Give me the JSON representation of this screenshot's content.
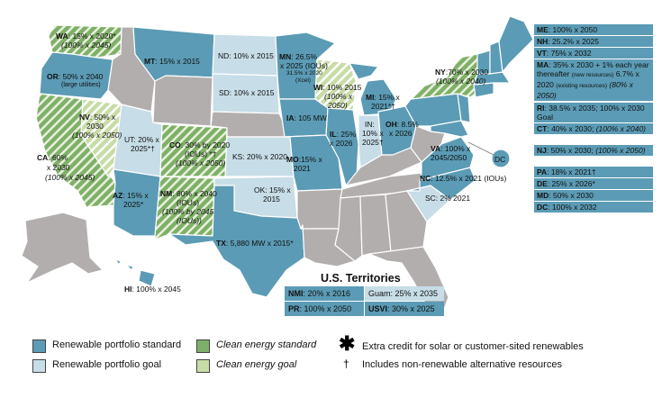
{
  "colors": {
    "rps": "#5b9bb5",
    "goal": "#c7dde7",
    "ces": "#7fb069",
    "ces_goal": "#c8dca6",
    "none": "#b3aeae",
    "border": "#ffffff"
  },
  "states": {
    "WA": "15% x 2020*",
    "WA_b": "(100% x 2045)",
    "OR": "50% x 2040",
    "OR_b": "(large utilities)",
    "CA": "60%",
    "CA_b": "x 2030",
    "CA_c": "(100% x 2045)",
    "NV": "50% x",
    "NV_b": "2030",
    "NV_c": "(100% x 2050)",
    "UT": "UT: 20% x",
    "UT_b": "2025*†",
    "AZ": "15% x",
    "AZ_b": "2025*",
    "MT": "15% x 2015",
    "CO": "30% by 2020",
    "CO_b": "(IOUs) *†",
    "CO_c": "(100% x 2050)",
    "NM": "80% x 2040",
    "NM_b": "(IOUs)",
    "NM_c": "(100% by 2045",
    "NM_d": "(IOUs))",
    "TX": "5,880 MW x 2015*",
    "ND": "ND: 10% x 2015",
    "SD": "SD: 10% x 2015",
    "MN": "26.5%",
    "MN_b": "x 2025 (IOUs)",
    "MN_c": "31.5% x 2020",
    "MN_d": "(Xcel)",
    "WI": "10% 2015",
    "WI_b": "(100% x",
    "WI_c": "2050)",
    "IA": "105 MW",
    "KS": "KS: 20% x 2020",
    "OK": "OK: 15% x",
    "OK_b": "2015",
    "MO": "15% x",
    "MO_b": "2021",
    "IL": "25%",
    "IL_b": "x 2026",
    "IN": "IN:",
    "IN_b": "10% x",
    "IN_c": "2025†",
    "MI": "15% x",
    "MI_b": "2021*†",
    "OH": "8.5%",
    "OH_b": "x 2026",
    "NY": "70% x 2030",
    "NY_b": "(100% x 2040)",
    "VA": "100% x",
    "VA_b": "2045/2050",
    "NC": "12.5% x 2021 (IOUs)",
    "SC": "SC: 2% 2021",
    "HI": "100% x 2045",
    "DC": "DC"
  },
  "side_boxes": [
    {
      "id": "ME",
      "text": "100% x 2050"
    },
    {
      "id": "NH",
      "text": "25.2% x 2025"
    },
    {
      "id": "VT",
      "text": "75% x 2032"
    },
    {
      "id": "MA",
      "text": "35% x 2030 + 1% each year thereafter",
      "small": "(new resources)",
      "line2": "6.7% x 2020",
      "small2": "(existing resources)",
      "line3": "(80% x 2050)"
    },
    {
      "id": "RI",
      "text": "38.5% x 2035; 100% x 2030 Goal"
    },
    {
      "id": "CT",
      "text": "40% x 2030;",
      "ital": "(100% x 2040)"
    },
    {
      "id": "NJ",
      "text": "50% x 2030;",
      "ital": "(100% x 2050)"
    },
    {
      "id": "PA",
      "text": "18% x 2021†"
    },
    {
      "id": "DE",
      "text": "25% x 2026*"
    },
    {
      "id": "MD",
      "text": "50% x 2030"
    },
    {
      "id": "DC",
      "text": "100% x 2032"
    }
  ],
  "territories": {
    "title": "U.S. Territories",
    "NMI_code": "NMI",
    "NMI": "20% x 2016",
    "Guam": "Guam: 25% x 2035",
    "PR_code": "PR",
    "PR": "100% x 2050",
    "USVI_code": "USVI",
    "USVI": "30% x 2025"
  },
  "legend": {
    "rps": "Renewable portfolio standard",
    "goal": "Renewable portfolio goal",
    "ces": "Clean energy standard",
    "ces_goal": "Clean energy goal",
    "star": "Extra credit for solar or customer-sited renewables",
    "dagger": "Includes non-renewable alternative resources"
  }
}
